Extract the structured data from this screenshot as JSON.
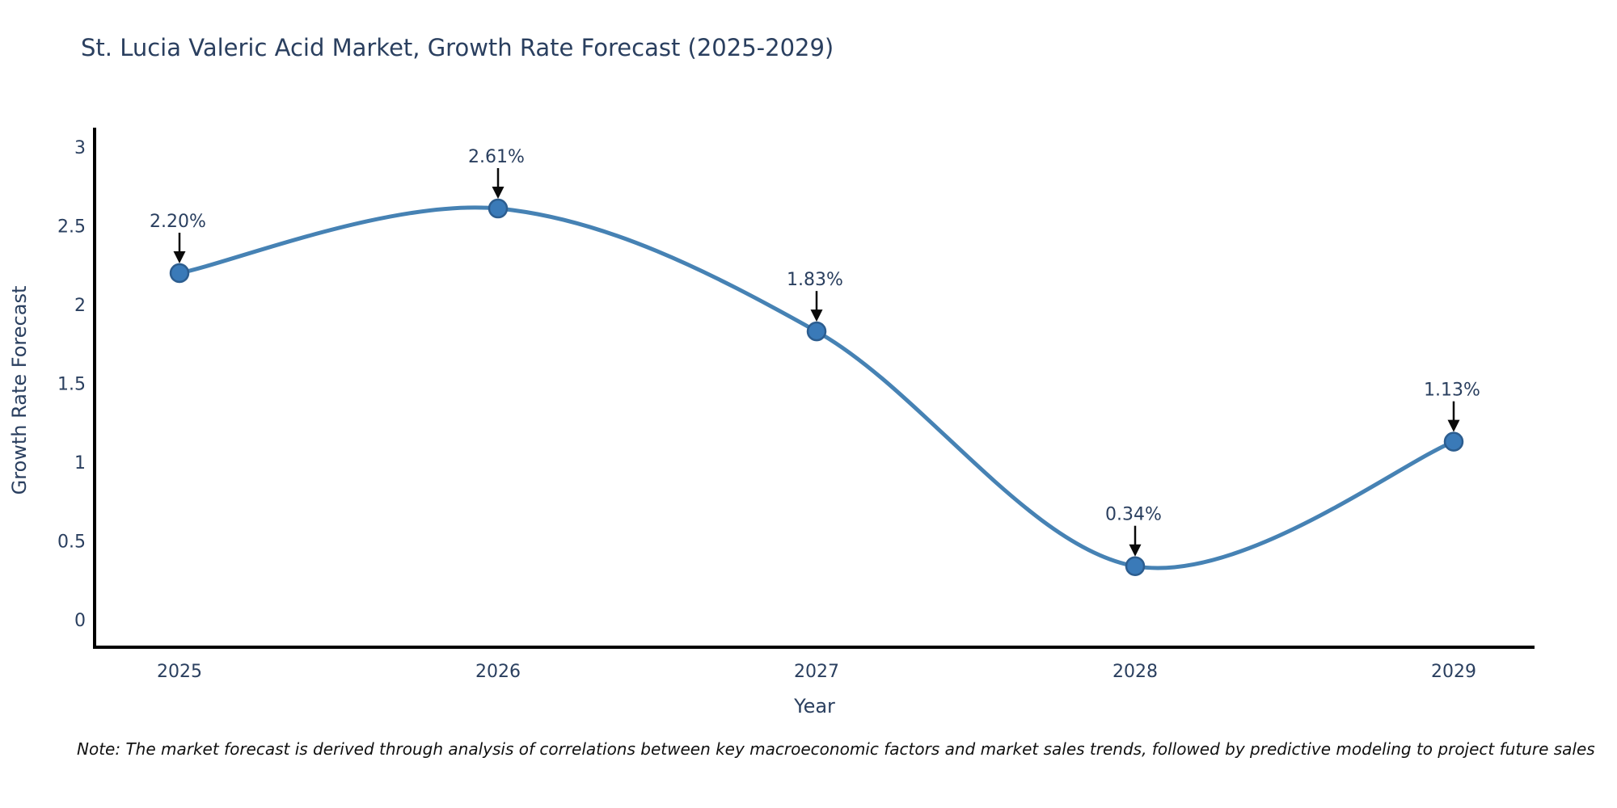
{
  "note": "Note: The market forecast is derived through analysis of correlations between key macroeconomic factors and market sales trends, followed by predictive modeling to project future sales",
  "chart_data": {
    "type": "line",
    "line_shape": "spline",
    "title": "St. Lucia Valeric Acid Market, Growth Rate Forecast (2025-2029)",
    "xlabel": "Year",
    "ylabel": "Growth Rate Forecast",
    "x": [
      "2025",
      "2026",
      "2027",
      "2028",
      "2029"
    ],
    "series": [
      {
        "name": "Growth Rate Forecast",
        "values": [
          2.2,
          2.61,
          1.83,
          0.34,
          1.13
        ]
      }
    ],
    "point_labels": [
      "2.20%",
      "2.61%",
      "1.83%",
      "0.34%",
      "1.13%"
    ],
    "y_ticks": [
      0,
      0.5,
      1,
      1.5,
      2,
      2.5,
      3
    ],
    "y_tick_labels": [
      "0",
      "0.5",
      "1",
      "1.5",
      "2",
      "2.5",
      "3"
    ],
    "ylim": [
      -0.17,
      3.12
    ],
    "grid": false,
    "legend_position": "none",
    "annotation_style": "value label above point with black down-arrow",
    "colors": {
      "line": "#4682b4",
      "marker_fill": "#3a7ab8",
      "marker_edge": "#2c5d8f",
      "arrow": "#0a0a0a",
      "text": "#2a3f5f",
      "axis": "#000000"
    }
  }
}
